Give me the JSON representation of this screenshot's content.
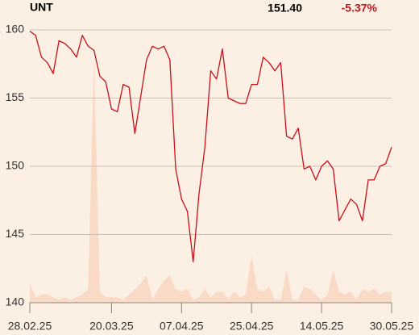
{
  "chart_data": {
    "type": "line",
    "title": "UNT",
    "last_price": "151.40",
    "change": "-5.37%",
    "categories": [
      "28.02.25",
      null,
      null,
      null,
      null,
      null,
      null,
      null,
      null,
      null,
      null,
      null,
      null,
      null,
      "20.03.25",
      null,
      null,
      null,
      null,
      null,
      null,
      null,
      null,
      null,
      null,
      null,
      "07.04.25",
      null,
      null,
      null,
      null,
      null,
      null,
      null,
      null,
      null,
      null,
      null,
      "25.04.25",
      null,
      null,
      null,
      null,
      null,
      null,
      null,
      null,
      null,
      null,
      null,
      "14.05.25",
      null,
      null,
      null,
      null,
      null,
      null,
      null,
      null,
      null,
      null,
      null,
      "30.05.25"
    ],
    "series": [
      {
        "name": "Price",
        "color": "#c8101a",
        "values": [
          159.9,
          159.6,
          158.0,
          157.6,
          156.8,
          159.2,
          159.0,
          158.6,
          158.0,
          159.6,
          158.8,
          158.5,
          156.6,
          156.2,
          154.2,
          154.0,
          156.0,
          155.8,
          152.4,
          155.1,
          157.8,
          158.8,
          158.6,
          158.8,
          157.8,
          149.8,
          147.6,
          146.7,
          143.0,
          148.0,
          151.4,
          157.0,
          156.4,
          158.6,
          155.0,
          154.8,
          154.6,
          154.6,
          156.0,
          156.0,
          158.0,
          157.6,
          157.0,
          157.6,
          152.2,
          152.0,
          152.8,
          149.8,
          150.0,
          149.0,
          150.0,
          150.4,
          149.8,
          146.0,
          146.8,
          147.6,
          147.2,
          146.0,
          149.0,
          149.0,
          150.0,
          150.2,
          151.4
        ]
      },
      {
        "name": "Volume",
        "color": "#f9dac6",
        "axis": "y2",
        "values": [
          7,
          2,
          3,
          3,
          2,
          1,
          2,
          1,
          2,
          3,
          5,
          89,
          4,
          2,
          2,
          2,
          1,
          3,
          5,
          7,
          10,
          1,
          5,
          8,
          10,
          5,
          4,
          5,
          1,
          2,
          5,
          2,
          4,
          4,
          1,
          4,
          2,
          3,
          17,
          5,
          4,
          6,
          1,
          1,
          12,
          1,
          1,
          6,
          5,
          3,
          1,
          3,
          12,
          4,
          3,
          4,
          1,
          5,
          4,
          5,
          3,
          4,
          4
        ]
      }
    ],
    "ylim": [
      140,
      160
    ],
    "yticks": [
      140,
      145,
      150,
      155,
      160
    ],
    "y2lim": [
      0,
      100
    ],
    "grid": true
  }
}
